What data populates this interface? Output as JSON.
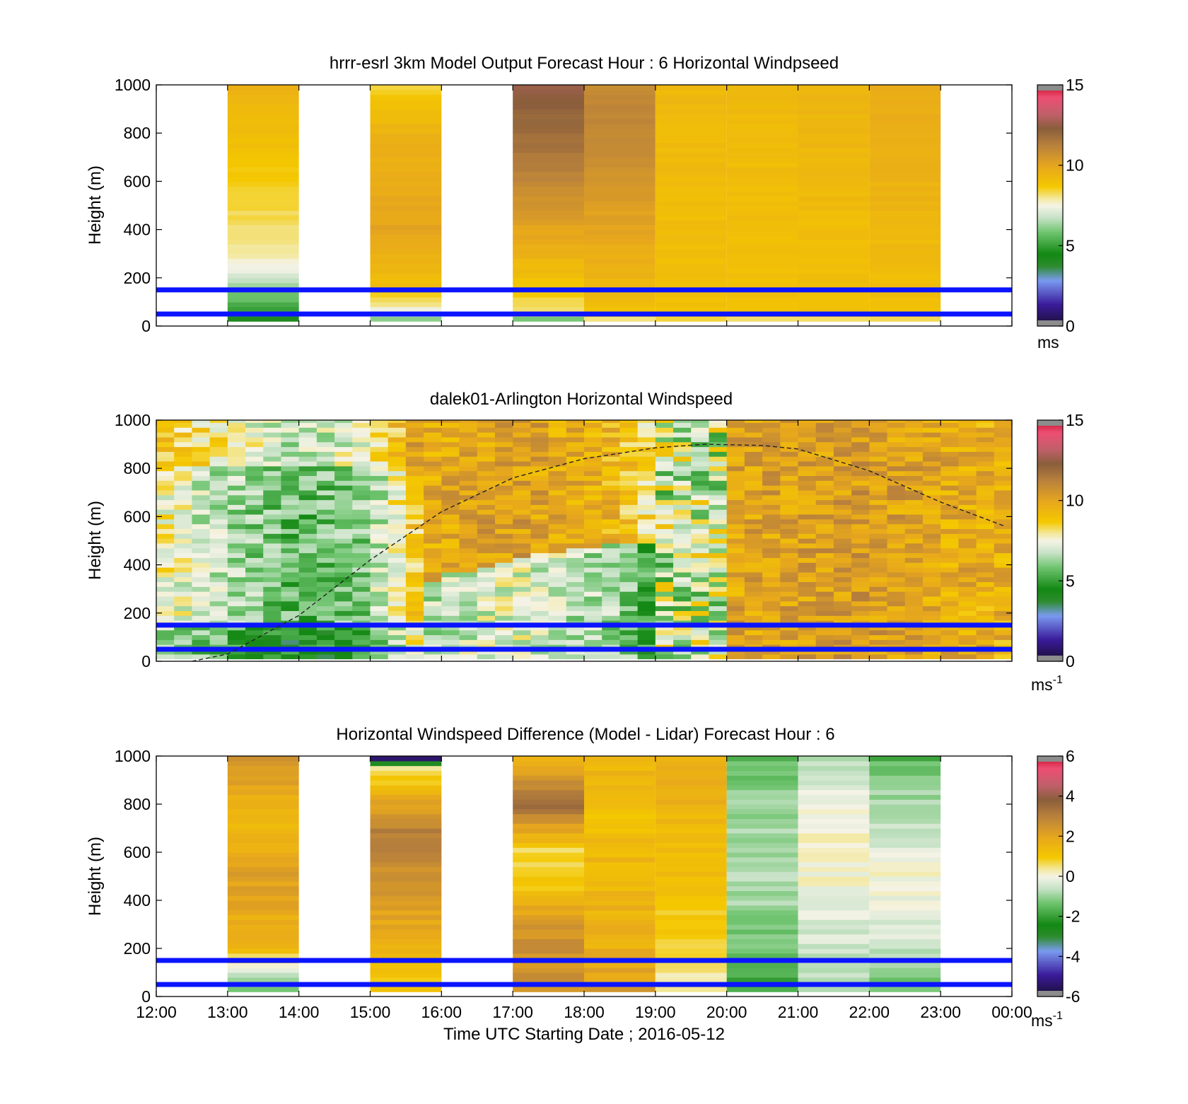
{
  "figure": {
    "x_tick_labels": [
      "12:00",
      "13:00",
      "14:00",
      "15:00",
      "16:00",
      "17:00",
      "18:00",
      "19:00",
      "20:00",
      "21:00",
      "22:00",
      "23:00",
      "00:00"
    ],
    "x_axis_label": "Time UTC  Starting Date ; 2016-05-12"
  },
  "chart_data": [
    {
      "type": "heatmap",
      "title": "hrrr-esrl 3km Model Output   Forecast Hour : 6 Horizontal Windpseed",
      "ylabel": "Height (m)",
      "ylim": [
        0,
        1000
      ],
      "y_ticks": [
        "0",
        "200",
        "400",
        "600",
        "800",
        "1000"
      ],
      "x_range_hours_utc": [
        12,
        24
      ],
      "colorbar": {
        "ticks": [
          "0",
          "5",
          "10",
          "15"
        ],
        "range": [
          0,
          15
        ],
        "unit_label": "ms",
        "unit_superscript": ""
      },
      "reference_heights_m": [
        50,
        150
      ],
      "columns": [
        {
          "start": 13,
          "end": 14,
          "profile": [
            [
              20,
              4
            ],
            [
              40,
              4.5
            ],
            [
              60,
              5
            ],
            [
              100,
              5.5
            ],
            [
              150,
              6
            ],
            [
              200,
              7
            ],
            [
              260,
              7.5
            ],
            [
              300,
              8
            ],
            [
              1000,
              9.5
            ]
          ]
        },
        {
          "start": 15,
          "end": 16,
          "profile": [
            [
              20,
              6
            ],
            [
              60,
              7
            ],
            [
              80,
              8
            ],
            [
              150,
              9
            ],
            [
              400,
              10
            ],
            [
              800,
              9.5
            ],
            [
              1000,
              8.5
            ]
          ]
        },
        {
          "start": 17,
          "end": 18,
          "profile": [
            [
              20,
              4
            ],
            [
              40,
              8
            ],
            [
              200,
              9
            ],
            [
              400,
              10
            ],
            [
              700,
              11.5
            ],
            [
              1000,
              12.5
            ]
          ]
        },
        {
          "start": 18,
          "end": 19,
          "profile": [
            [
              20,
              8
            ],
            [
              60,
              9
            ],
            [
              400,
              10
            ],
            [
              800,
              11
            ],
            [
              1000,
              11
            ]
          ]
        },
        {
          "start": 19,
          "end": 20,
          "profile": [
            [
              20,
              8
            ],
            [
              50,
              9
            ],
            [
              1000,
              9.3
            ]
          ]
        },
        {
          "start": 20,
          "end": 21,
          "profile": [
            [
              20,
              8
            ],
            [
              50,
              9
            ],
            [
              1000,
              9.2
            ]
          ]
        },
        {
          "start": 21,
          "end": 22,
          "profile": [
            [
              20,
              8
            ],
            [
              50,
              9
            ],
            [
              1000,
              9.4
            ]
          ]
        },
        {
          "start": 22,
          "end": 23,
          "profile": [
            [
              20,
              8
            ],
            [
              50,
              9
            ],
            [
              1000,
              9.8
            ]
          ]
        }
      ]
    },
    {
      "type": "heatmap",
      "title": "dalek01-Arlington  Horizontal Windspeed",
      "ylabel": "Height (m)",
      "ylim": [
        0,
        1000
      ],
      "y_ticks": [
        "0",
        "200",
        "400",
        "600",
        "800",
        "1000"
      ],
      "x_range_hours_utc": [
        12,
        24
      ],
      "colorbar": {
        "ticks": [
          "0",
          "5",
          "10",
          "15"
        ],
        "range": [
          0,
          15
        ],
        "unit_label": "ms",
        "unit_superscript": "-1"
      },
      "reference_heights_m": [
        50,
        150
      ],
      "boundary_layer_curve": [
        [
          12.5,
          0
        ],
        [
          13,
          30
        ],
        [
          14,
          190
        ],
        [
          15,
          420
        ],
        [
          16,
          620
        ],
        [
          17,
          760
        ],
        [
          18,
          840
        ],
        [
          19,
          885
        ],
        [
          19.7,
          900
        ],
        [
          20.5,
          895
        ],
        [
          21,
          880
        ],
        [
          22,
          790
        ],
        [
          23,
          660
        ],
        [
          23.9,
          560
        ]
      ],
      "lidar_x_range": [
        12,
        23.85
      ],
      "lidar_column_width_hours": 0.25,
      "regime_points": [
        [
          12,
          7.8
        ],
        [
          13,
          6.5
        ],
        [
          14,
          5.5
        ],
        [
          15,
          6.2
        ],
        [
          15.6,
          8.8
        ],
        [
          17,
          9.5
        ],
        [
          18.5,
          8.5
        ],
        [
          19,
          7
        ],
        [
          20,
          10
        ],
        [
          22,
          10.3
        ],
        [
          23.85,
          9.5
        ]
      ]
    },
    {
      "type": "heatmap",
      "title": "Horizontal Windspeed Difference (Model - Lidar) Forecast Hour : 6",
      "ylabel": "Height (m)",
      "ylim": [
        0,
        1000
      ],
      "y_ticks": [
        "0",
        "200",
        "400",
        "600",
        "800",
        "1000"
      ],
      "x_range_hours_utc": [
        12,
        24
      ],
      "colorbar": {
        "ticks": [
          "-6",
          "-4",
          "-2",
          "0",
          "2",
          "4",
          "6"
        ],
        "range": [
          -6,
          6
        ],
        "unit_label": "ms",
        "unit_superscript": "-1"
      },
      "reference_heights_m": [
        50,
        150
      ],
      "columns": [
        {
          "start": 13,
          "end": 14,
          "profile": [
            [
              20,
              -1.5
            ],
            [
              80,
              -0.5
            ],
            [
              140,
              0.2
            ],
            [
              200,
              1.5
            ],
            [
              500,
              2.2
            ],
            [
              700,
              1.2
            ],
            [
              1000,
              2.6
            ]
          ]
        },
        {
          "start": 15,
          "end": 16,
          "profile": [
            [
              20,
              1.2
            ],
            [
              100,
              1
            ],
            [
              400,
              2.4
            ],
            [
              700,
              3
            ],
            [
              900,
              1
            ],
            [
              950,
              0.2
            ],
            [
              1000,
              -6.5
            ]
          ]
        },
        {
          "start": 17,
          "end": 18,
          "profile": [
            [
              20,
              2.5
            ],
            [
              300,
              2.5
            ],
            [
              450,
              1
            ],
            [
              600,
              0.6
            ],
            [
              800,
              3.5
            ],
            [
              1000,
              1.5
            ]
          ]
        },
        {
          "start": 18,
          "end": 19,
          "profile": [
            [
              20,
              2.2
            ],
            [
              200,
              1.7
            ],
            [
              500,
              1.5
            ],
            [
              800,
              1.2
            ],
            [
              1000,
              1.6
            ]
          ]
        },
        {
          "start": 19,
          "end": 20,
          "profile": [
            [
              20,
              0.3
            ],
            [
              200,
              0.7
            ],
            [
              500,
              1.2
            ],
            [
              800,
              1.6
            ],
            [
              1000,
              1.8
            ]
          ]
        },
        {
          "start": 20,
          "end": 21,
          "profile": [
            [
              20,
              -2
            ],
            [
              200,
              -1.3
            ],
            [
              500,
              -0.7
            ],
            [
              800,
              -1
            ],
            [
              1000,
              -1.6
            ]
          ]
        },
        {
          "start": 21,
          "end": 22,
          "profile": [
            [
              20,
              -0.8
            ],
            [
              300,
              -0.3
            ],
            [
              650,
              0.3
            ],
            [
              1000,
              -0.6
            ]
          ]
        },
        {
          "start": 22,
          "end": 23,
          "profile": [
            [
              20,
              -1.5
            ],
            [
              200,
              -0.5
            ],
            [
              500,
              0.1
            ],
            [
              800,
              -0.8
            ],
            [
              960,
              -1.3
            ],
            [
              1000,
              -2
            ]
          ]
        }
      ]
    }
  ]
}
